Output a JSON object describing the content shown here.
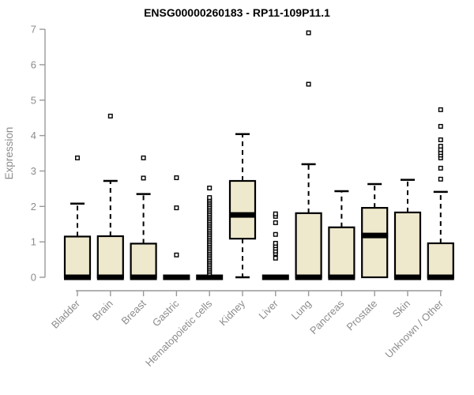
{
  "chart_data": {
    "type": "boxplot",
    "title": "ENSG00000260183 - RP11-109P11.1",
    "ylabel": "Expression",
    "xlabel": "",
    "ylim": [
      0,
      7
    ],
    "yticks": [
      0,
      1,
      2,
      3,
      4,
      5,
      6,
      7
    ],
    "grid": false,
    "legend": "none",
    "categories": [
      "Bladder",
      "Brain",
      "Breast",
      "Gastric",
      "Hematopoietic cells",
      "Kidney",
      "Liver",
      "Lung",
      "Pancreas",
      "Prostate",
      "Skin",
      "Unknown / Other"
    ],
    "series": [
      {
        "category": "Bladder",
        "whisker_low": 0,
        "q1": 0,
        "median": 0,
        "q3": 1.15,
        "whisker_high": 2.08,
        "outliers": [
          3.37
        ]
      },
      {
        "category": "Brain",
        "whisker_low": 0,
        "q1": 0,
        "median": 0,
        "q3": 1.16,
        "whisker_high": 2.72,
        "outliers": [
          4.55
        ]
      },
      {
        "category": "Breast",
        "whisker_low": 0,
        "q1": 0,
        "median": 0,
        "q3": 0.95,
        "whisker_high": 2.35,
        "outliers": [
          2.8,
          3.37
        ]
      },
      {
        "category": "Gastric",
        "whisker_low": 0,
        "q1": 0,
        "median": 0,
        "q3": 0,
        "whisker_high": 0,
        "outliers": [
          0.63,
          1.96,
          2.81
        ]
      },
      {
        "category": "Hematopoietic cells",
        "whisker_low": 0,
        "q1": 0,
        "median": 0,
        "q3": 0,
        "whisker_high": 0,
        "outliers": [
          0.1,
          0.15,
          0.2,
          0.25,
          0.3,
          0.35,
          0.4,
          0.45,
          0.5,
          0.55,
          0.6,
          0.65,
          0.7,
          0.75,
          0.8,
          0.85,
          0.9,
          0.95,
          1.0,
          1.05,
          1.1,
          1.15,
          1.2,
          1.25,
          1.3,
          1.35,
          1.4,
          1.45,
          1.5,
          1.55,
          1.6,
          1.65,
          1.7,
          1.75,
          1.8,
          1.85,
          1.9,
          1.95,
          2.0,
          2.05,
          2.1,
          2.15,
          2.2,
          2.25,
          2.52
        ]
      },
      {
        "category": "Kidney",
        "whisker_low": 0,
        "q1": 1.09,
        "median": 1.76,
        "q3": 2.72,
        "whisker_high": 4.04,
        "outliers": []
      },
      {
        "category": "Liver",
        "whisker_low": 0,
        "q1": 0,
        "median": 0,
        "q3": 0,
        "whisker_high": 0,
        "outliers": [
          0.54,
          0.67,
          0.74,
          0.82,
          0.89,
          0.96,
          1.21,
          1.54,
          1.72,
          1.79
        ]
      },
      {
        "category": "Lung",
        "whisker_low": 0,
        "q1": 0,
        "median": 0,
        "q3": 1.81,
        "whisker_high": 3.19,
        "outliers": [
          5.45,
          6.9
        ]
      },
      {
        "category": "Pancreas",
        "whisker_low": 0,
        "q1": 0,
        "median": 0,
        "q3": 1.41,
        "whisker_high": 2.43,
        "outliers": []
      },
      {
        "category": "Prostate",
        "whisker_low": 0,
        "q1": 0,
        "median": 1.18,
        "q3": 1.96,
        "whisker_high": 2.63,
        "outliers": []
      },
      {
        "category": "Skin",
        "whisker_low": 0,
        "q1": 0,
        "median": 0,
        "q3": 1.83,
        "whisker_high": 2.75,
        "outliers": []
      },
      {
        "category": "Unknown / Other",
        "whisker_low": 0,
        "q1": 0,
        "median": 0,
        "q3": 0.96,
        "whisker_high": 2.41,
        "outliers": [
          2.77,
          3.08,
          3.37,
          3.45,
          3.52,
          3.6,
          3.7,
          3.88,
          4.26,
          4.73
        ]
      }
    ],
    "colors": {
      "box_fill": "#EEE8CD",
      "box_border": "#000000",
      "median": "#000000",
      "whisker": "#000000",
      "outlier": "#000000",
      "axis": "#999999",
      "tick_text": "#8C8C8C",
      "title_text": "#000000",
      "background": "#FFFFFF"
    }
  }
}
